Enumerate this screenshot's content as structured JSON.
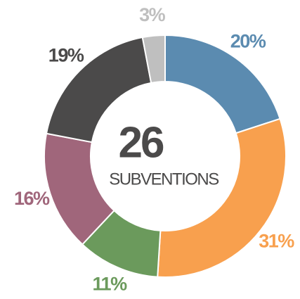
{
  "chart_data": {
    "type": "donut",
    "categories": [
      null,
      null,
      null,
      null,
      null,
      null
    ],
    "values": [
      20,
      31,
      11,
      16,
      19,
      3
    ],
    "value_labels": [
      "20%",
      "31%",
      "11%",
      "16%",
      "19%",
      "3%"
    ],
    "colors": [
      "#5b8bb0",
      "#f8a04e",
      "#6b9a5c",
      "#a0667b",
      "#4b4a4a",
      "#bfbfbf"
    ],
    "center_value": "26",
    "center_label": "SUBVENTIONS"
  }
}
